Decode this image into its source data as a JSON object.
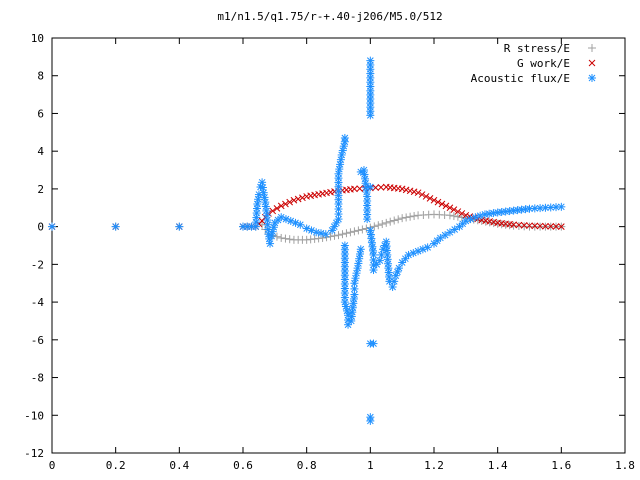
{
  "chart_data": {
    "type": "scatter",
    "title": "m1/n1.5/q1.75/r-+.40-j206/M5.0/512",
    "xlabel": "",
    "ylabel": "",
    "xlim": [
      0,
      1.8
    ],
    "ylim": [
      -12,
      10
    ],
    "x_ticks": [
      "0",
      "0.2",
      "0.4",
      "0.6",
      "0.8",
      "1",
      "1.2",
      "1.4",
      "1.6",
      "1.8"
    ],
    "y_ticks": [
      "-12",
      "-10",
      "-8",
      "-6",
      "-4",
      "-2",
      "0",
      "2",
      "4",
      "6",
      "8",
      "10"
    ],
    "grid": false,
    "legend_position": "top-right",
    "series": [
      {
        "name": "R stress/E",
        "marker": "+",
        "color": "#a0a0a0",
        "points": [
          [
            0.0,
            0
          ],
          [
            0.2,
            0
          ],
          [
            0.4,
            0
          ],
          [
            0.6,
            0
          ],
          [
            0.64,
            0
          ],
          [
            0.66,
            0.1
          ],
          [
            0.68,
            -0.4
          ],
          [
            0.72,
            -0.6
          ],
          [
            0.76,
            -0.7
          ],
          [
            0.8,
            -0.7
          ],
          [
            0.85,
            -0.6
          ],
          [
            0.9,
            -0.45
          ],
          [
            0.95,
            -0.25
          ],
          [
            1.0,
            -0.05
          ],
          [
            1.05,
            0.2
          ],
          [
            1.1,
            0.45
          ],
          [
            1.15,
            0.6
          ],
          [
            1.2,
            0.65
          ],
          [
            1.25,
            0.6
          ],
          [
            1.3,
            0.45
          ],
          [
            1.35,
            0.3
          ],
          [
            1.4,
            0.15
          ],
          [
            1.45,
            0.05
          ],
          [
            1.5,
            0.0
          ],
          [
            1.55,
            0.0
          ],
          [
            1.6,
            0.0
          ]
        ]
      },
      {
        "name": "G work/E",
        "marker": "x",
        "color": "#cc0000",
        "points": [
          [
            0.0,
            0
          ],
          [
            0.2,
            0
          ],
          [
            0.4,
            0
          ],
          [
            0.6,
            0
          ],
          [
            0.64,
            0
          ],
          [
            0.66,
            0.3
          ],
          [
            0.68,
            0.7
          ],
          [
            0.72,
            1.1
          ],
          [
            0.76,
            1.4
          ],
          [
            0.8,
            1.6
          ],
          [
            0.85,
            1.75
          ],
          [
            0.9,
            1.9
          ],
          [
            0.95,
            2.0
          ],
          [
            1.0,
            2.05
          ],
          [
            1.05,
            2.1
          ],
          [
            1.1,
            2.0
          ],
          [
            1.15,
            1.8
          ],
          [
            1.2,
            1.4
          ],
          [
            1.25,
            1.0
          ],
          [
            1.3,
            0.6
          ],
          [
            1.35,
            0.35
          ],
          [
            1.4,
            0.2
          ],
          [
            1.45,
            0.1
          ],
          [
            1.5,
            0.05
          ],
          [
            1.55,
            0.02
          ],
          [
            1.6,
            0.0
          ]
        ]
      },
      {
        "name": "Acoustic flux/E",
        "marker": "*",
        "color": "#1e90ff",
        "points": [
          [
            0.0,
            0
          ],
          [
            0.2,
            0
          ],
          [
            0.4,
            0
          ],
          [
            0.6,
            0
          ],
          [
            0.64,
            0
          ],
          [
            0.645,
            1.2
          ],
          [
            0.65,
            1.7
          ],
          [
            0.655,
            2.1
          ],
          [
            0.66,
            2.35
          ],
          [
            0.665,
            1.8
          ],
          [
            0.67,
            1.3
          ],
          [
            0.675,
            0.6
          ],
          [
            0.68,
            -0.4
          ],
          [
            0.685,
            -0.9
          ],
          [
            0.69,
            -0.5
          ],
          [
            0.7,
            0.2
          ],
          [
            0.72,
            0.5
          ],
          [
            0.75,
            0.3
          ],
          [
            0.78,
            0.1
          ],
          [
            0.8,
            -0.1
          ],
          [
            0.83,
            -0.3
          ],
          [
            0.86,
            -0.4
          ],
          [
            0.88,
            -0.2
          ],
          [
            0.9,
            0.4
          ],
          [
            0.9,
            1.2
          ],
          [
            0.9,
            2.8
          ],
          [
            0.91,
            3.8
          ],
          [
            0.92,
            4.5
          ],
          [
            0.92,
            4.7
          ],
          [
            0.92,
            -1.0
          ],
          [
            0.92,
            -2.8
          ],
          [
            0.92,
            -4.0
          ],
          [
            0.93,
            -4.7
          ],
          [
            0.93,
            -5.2
          ],
          [
            0.94,
            -5.0
          ],
          [
            0.95,
            -3.6
          ],
          [
            0.95,
            -3.0
          ],
          [
            0.96,
            -2.2
          ],
          [
            0.97,
            -1.2
          ],
          [
            0.97,
            2.9
          ],
          [
            0.98,
            3.0
          ],
          [
            0.99,
            1.6
          ],
          [
            0.99,
            0.4
          ],
          [
            1.0,
            8.8
          ],
          [
            1.0,
            7.2
          ],
          [
            1.0,
            5.9
          ],
          [
            1.0,
            2.1
          ],
          [
            1.0,
            -0.2
          ],
          [
            1.01,
            -1.5
          ],
          [
            1.01,
            -2.3
          ],
          [
            1.0,
            -6.2
          ],
          [
            1.01,
            -6.2
          ],
          [
            1.0,
            -10.1
          ],
          [
            1.0,
            -10.3
          ],
          [
            1.02,
            -2.0
          ],
          [
            1.03,
            -1.8
          ],
          [
            1.04,
            -1.2
          ],
          [
            1.05,
            -0.8
          ],
          [
            1.06,
            -2.9
          ],
          [
            1.07,
            -3.2
          ],
          [
            1.08,
            -2.6
          ],
          [
            1.09,
            -2.2
          ],
          [
            1.1,
            -1.9
          ],
          [
            1.12,
            -1.5
          ],
          [
            1.15,
            -1.3
          ],
          [
            1.18,
            -1.1
          ],
          [
            1.2,
            -0.9
          ],
          [
            1.22,
            -0.6
          ],
          [
            1.25,
            -0.3
          ],
          [
            1.28,
            0.0
          ],
          [
            1.3,
            0.3
          ],
          [
            1.33,
            0.5
          ],
          [
            1.36,
            0.65
          ],
          [
            1.4,
            0.75
          ],
          [
            1.45,
            0.85
          ],
          [
            1.5,
            0.95
          ],
          [
            1.55,
            1.0
          ],
          [
            1.6,
            1.05
          ]
        ]
      }
    ]
  }
}
